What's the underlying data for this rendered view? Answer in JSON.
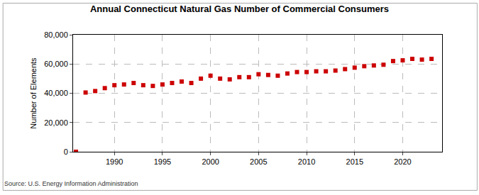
{
  "chart_data": {
    "type": "scatter",
    "title": "Annual Connecticut Natural Gas Number of Commercial Consumers",
    "y_label": "Number of Elements",
    "source": "Source: U.S. Energy Information Administration",
    "x": [
      1986,
      1987,
      1988,
      1989,
      1990,
      1991,
      1992,
      1993,
      1994,
      1995,
      1996,
      1997,
      1998,
      1999,
      2000,
      2001,
      2002,
      2003,
      2004,
      2005,
      2006,
      2007,
      2008,
      2009,
      2010,
      2011,
      2012,
      2013,
      2014,
      2015,
      2016,
      2017,
      2018,
      2019,
      2020,
      2021,
      2022,
      2023
    ],
    "values": [
      0,
      40500,
      41500,
      43500,
      45500,
      46000,
      47000,
      45500,
      45000,
      46000,
      47000,
      48000,
      47000,
      50000,
      52000,
      50000,
      49500,
      51000,
      51000,
      53000,
      52500,
      52000,
      53500,
      54500,
      54500,
      55000,
      55000,
      55500,
      56500,
      57500,
      58500,
      59000,
      59500,
      62000,
      62500,
      63500,
      63000,
      63500
    ],
    "color": "#cc0000",
    "marker": "square",
    "xlim": [
      1985.7,
      2024.1
    ],
    "xticks": [
      1990,
      1995,
      2000,
      2005,
      2010,
      2015,
      2020
    ],
    "ylim": [
      0,
      80000
    ],
    "yticks": [
      0,
      {
        "value": 20000,
        "label": "20,000"
      },
      {
        "value": 40000,
        "label": "40,000"
      },
      {
        "value": 60000,
        "label": "60,000"
      },
      {
        "value": 80000,
        "label": "80,000"
      }
    ],
    "grid": true
  }
}
